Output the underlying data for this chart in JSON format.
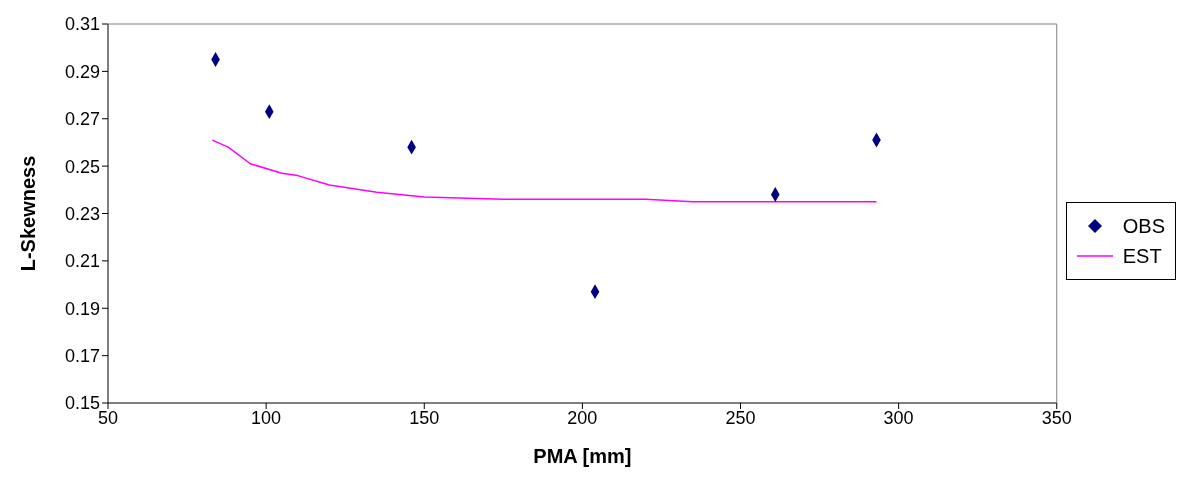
{
  "chart_data": {
    "type": "scatter",
    "xlabel": "PMA [mm]",
    "ylabel": "L-Skewness",
    "xlim": [
      50,
      350
    ],
    "xticks": [
      50,
      100,
      150,
      200,
      250,
      300,
      350
    ],
    "ylim": [
      0.15,
      0.31
    ],
    "yticks": [
      0.15,
      0.17,
      0.19,
      0.21,
      0.23,
      0.25,
      0.27,
      0.29,
      0.31
    ],
    "grid": false,
    "legend": "right",
    "marker": "diamond",
    "series": [
      {
        "name": "OBS",
        "color": "#000080",
        "x": [
          84,
          101,
          146,
          204,
          261,
          293
        ],
        "values": [
          0.295,
          0.273,
          0.258,
          0.197,
          0.238,
          0.261
        ]
      },
      {
        "name": "EST",
        "type": "line",
        "color": "#ff00ff",
        "marker": "none",
        "line_style": "solid",
        "x": [
          83,
          88,
          95,
          105,
          110,
          120,
          135,
          150,
          175,
          220,
          235,
          293
        ],
        "values": [
          0.261,
          0.258,
          0.251,
          0.247,
          0.246,
          0.242,
          0.239,
          0.237,
          0.236,
          0.236,
          0.235,
          0.235
        ]
      }
    ]
  }
}
